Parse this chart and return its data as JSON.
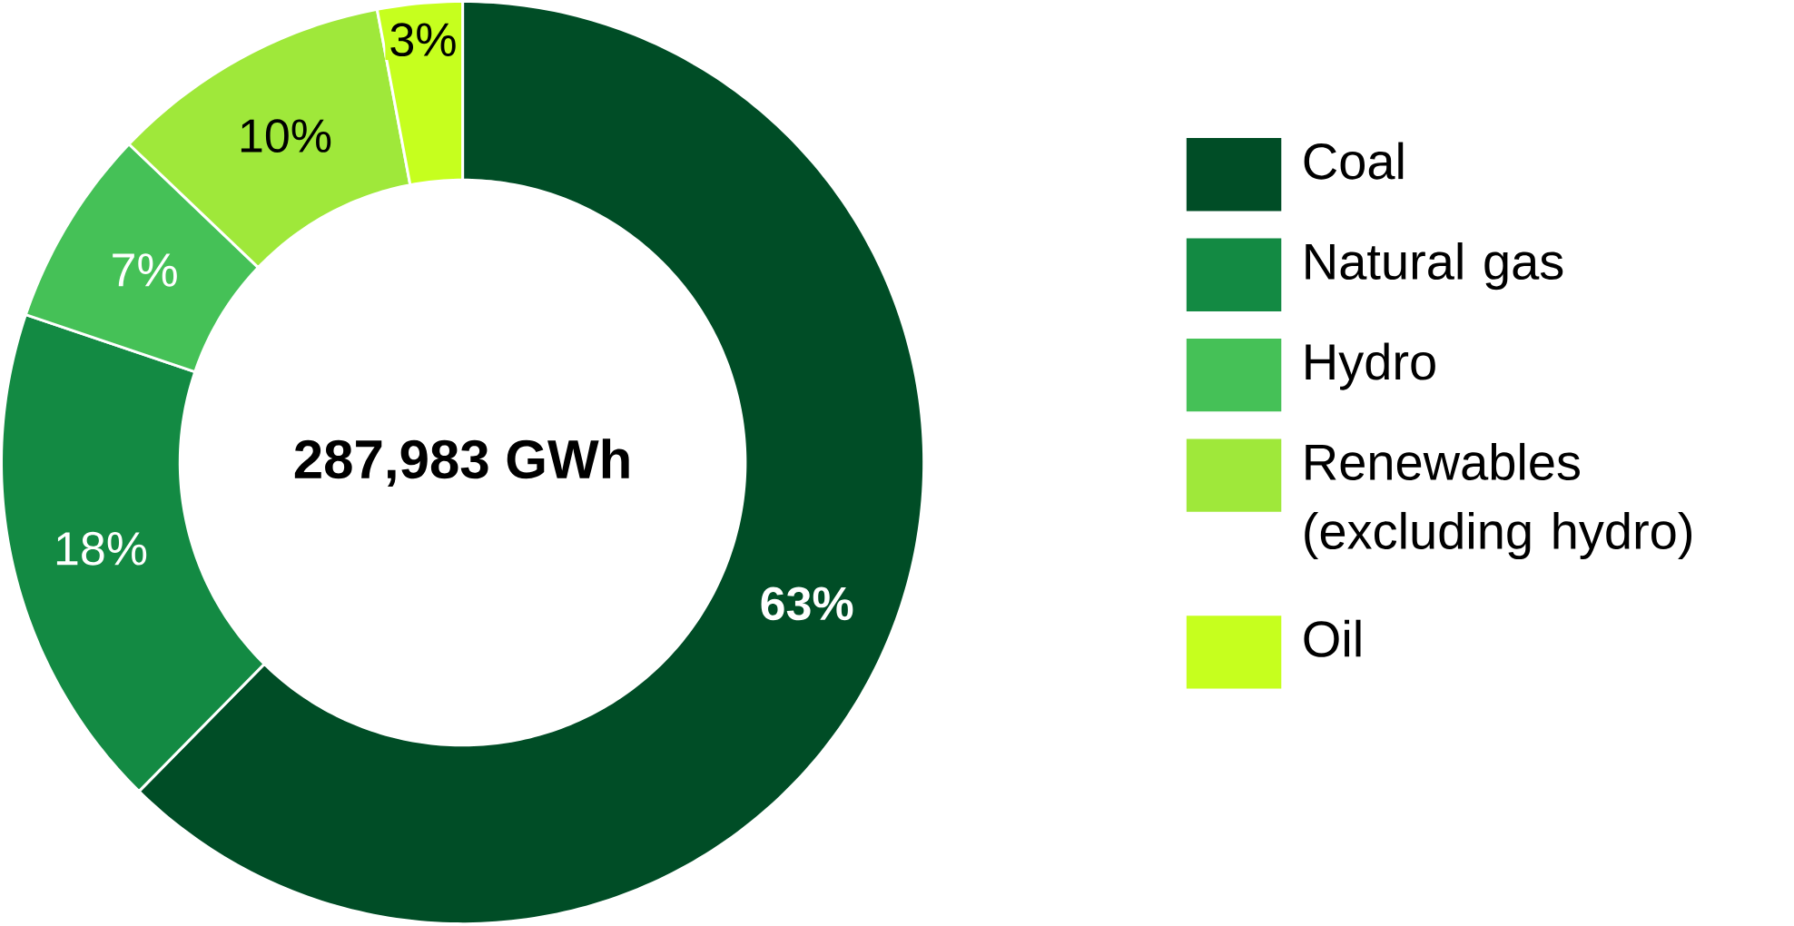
{
  "chart_data": {
    "type": "donut",
    "categories": [
      "Coal",
      "Natural gas",
      "Hydro",
      "Renewables (excluding hydro)",
      "Oil"
    ],
    "values": [
      63,
      18,
      7,
      10,
      3
    ],
    "colors": [
      "#004d26",
      "#138a43",
      "#45c157",
      "#9fe83a",
      "#c6ff1e"
    ],
    "value_labels": [
      "63%",
      "18%",
      "7%",
      "10%",
      "3%"
    ],
    "legend": "right",
    "annotations": [
      "287,983 GWh"
    ]
  }
}
